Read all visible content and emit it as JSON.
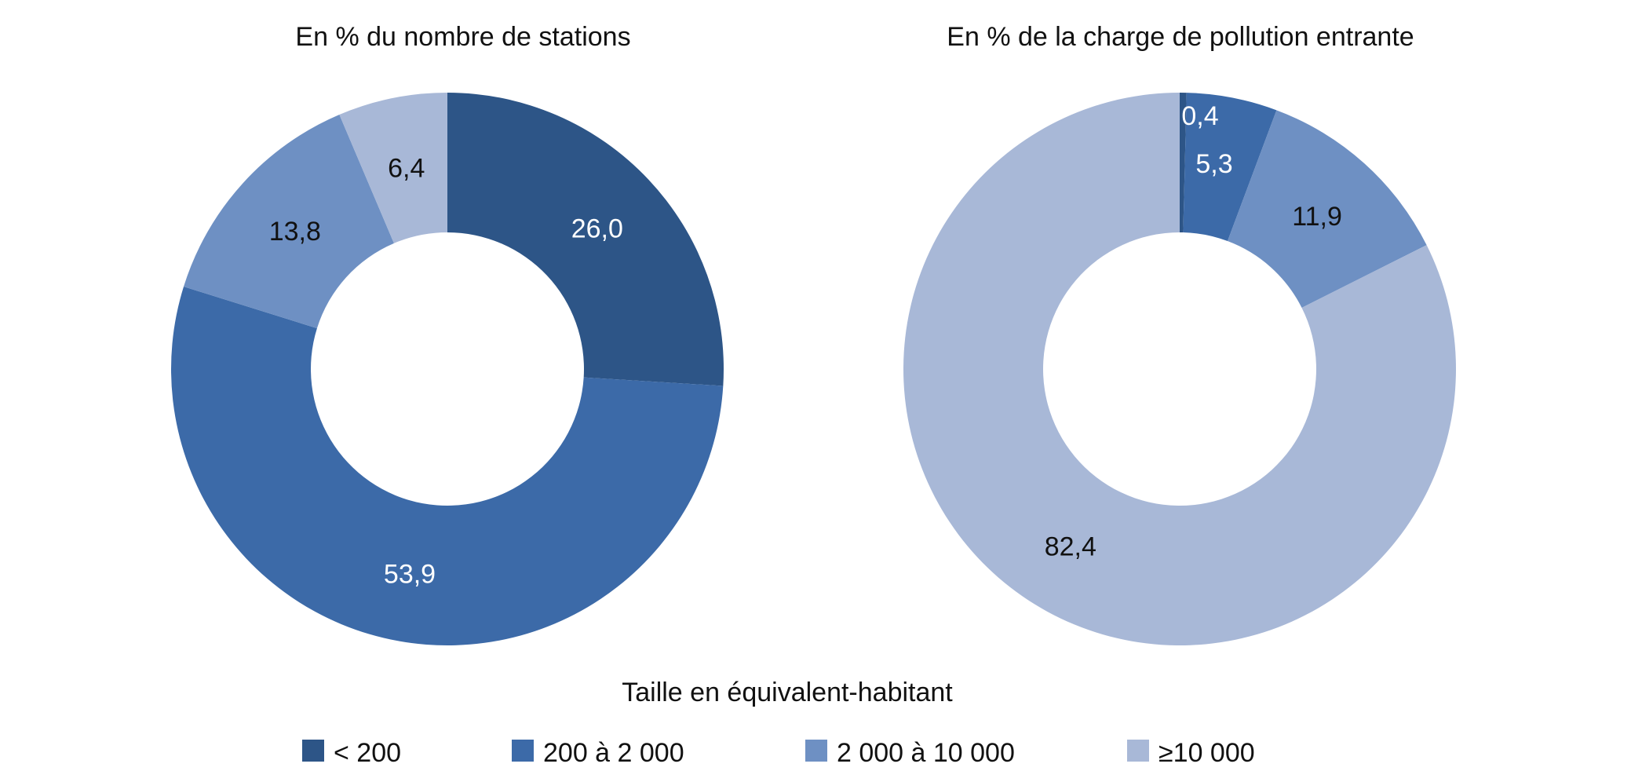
{
  "legend": {
    "title": "Taille en équivalent-habitant",
    "items": [
      {
        "label": "< 200",
        "color": "#2d5587"
      },
      {
        "label": "200 à 2 000",
        "color": "#3c6aa8"
      },
      {
        "label": "2 000 à 10 000",
        "color": "#6e90c3"
      },
      {
        "label": "≥10 000",
        "color": "#a8b8d7"
      }
    ]
  },
  "chart_data": [
    {
      "type": "pie",
      "title": "En % du nombre de stations",
      "categories": [
        "< 200",
        "200 à 2 000",
        "2 000 à 10 000",
        "≥10 000"
      ],
      "values": [
        26.0,
        53.9,
        13.8,
        6.4
      ],
      "labels": [
        "26,0",
        "53,9",
        "13,8",
        "6,4"
      ],
      "label_colors": [
        "#ffffff",
        "#ffffff",
        "#111111",
        "#111111"
      ],
      "colors": [
        "#2d5587",
        "#3c6aa8",
        "#6e90c3",
        "#a8b8d7"
      ],
      "donut": true,
      "legend_position": "bottom"
    },
    {
      "type": "pie",
      "title": "En % de la charge de pollution entrante",
      "categories": [
        "< 200",
        "200 à 2 000",
        "2 000 à 10 000",
        "≥10 000"
      ],
      "values": [
        0.4,
        5.3,
        11.9,
        82.4
      ],
      "labels": [
        "0,4",
        "5,3",
        "11,9",
        "82,4"
      ],
      "label_colors": [
        "#ffffff",
        "#ffffff",
        "#111111",
        "#111111"
      ],
      "colors": [
        "#2d5587",
        "#3c6aa8",
        "#6e90c3",
        "#a8b8d7"
      ],
      "donut": true,
      "legend_position": "bottom"
    }
  ]
}
